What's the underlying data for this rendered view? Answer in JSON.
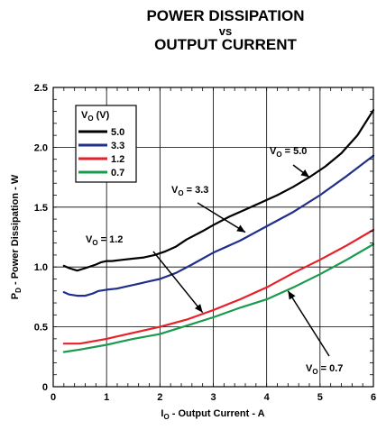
{
  "chart_data": {
    "type": "line",
    "title_lines": [
      "POWER DISSIPATION",
      "vs",
      "OUTPUT CURRENT"
    ],
    "xlabel": {
      "main": "I",
      "sub": "O",
      "rest": " - Output Current - A"
    },
    "ylabel": {
      "main": "P",
      "sub": "D",
      "rest": " - Power Dissipation - W"
    },
    "xlim": [
      0,
      6
    ],
    "ylim": [
      0,
      2.5
    ],
    "x_ticks": [
      0,
      1,
      2,
      3,
      4,
      5,
      6
    ],
    "x_tick_labels": [
      "0",
      "1",
      "2",
      "3",
      "4",
      "5",
      "6"
    ],
    "y_ticks": [
      0,
      0.5,
      1.0,
      1.5,
      2.0,
      2.5
    ],
    "y_tick_labels": [
      "0",
      "0.5",
      "1.0",
      "1.5",
      "2.0",
      "2.5"
    ],
    "grid": true,
    "legend": {
      "placement": "top-left",
      "title": {
        "main": "V",
        "sub": "O",
        "rest": " (V)"
      },
      "entries": [
        "5.0",
        "3.3",
        "1.2",
        "0.7"
      ]
    },
    "series": [
      {
        "name": "5.0",
        "color": "#000000",
        "x": [
          0.2,
          0.3,
          0.45,
          0.6,
          0.8,
          0.9,
          1.0,
          1.1,
          1.3,
          1.5,
          1.7,
          1.9,
          2.1,
          2.3,
          2.5,
          2.8,
          3.0,
          3.3,
          3.6,
          3.9,
          4.2,
          4.5,
          4.8,
          5.1,
          5.4,
          5.7,
          6.0
        ],
        "y": [
          1.01,
          0.99,
          0.97,
          0.99,
          1.02,
          1.04,
          1.05,
          1.05,
          1.06,
          1.07,
          1.08,
          1.1,
          1.13,
          1.17,
          1.23,
          1.3,
          1.35,
          1.42,
          1.48,
          1.54,
          1.6,
          1.67,
          1.75,
          1.84,
          1.95,
          2.1,
          2.31
        ]
      },
      {
        "name": "3.3",
        "color": "#1f2f8a",
        "x": [
          0.2,
          0.3,
          0.45,
          0.6,
          0.75,
          0.85,
          1.0,
          1.2,
          1.4,
          1.6,
          1.8,
          2.0,
          2.3,
          2.6,
          3.0,
          3.5,
          4.0,
          4.5,
          5.0,
          5.5,
          6.0
        ],
        "y": [
          0.79,
          0.77,
          0.76,
          0.76,
          0.78,
          0.8,
          0.81,
          0.82,
          0.84,
          0.86,
          0.88,
          0.9,
          0.95,
          1.02,
          1.12,
          1.22,
          1.34,
          1.46,
          1.6,
          1.76,
          1.93
        ]
      },
      {
        "name": "1.2",
        "color": "#e8202a",
        "x": [
          0.2,
          0.5,
          1.0,
          1.5,
          2.0,
          2.5,
          3.0,
          3.5,
          4.0,
          4.5,
          5.0,
          5.5,
          6.0
        ],
        "y": [
          0.36,
          0.36,
          0.4,
          0.45,
          0.5,
          0.56,
          0.64,
          0.73,
          0.83,
          0.95,
          1.06,
          1.18,
          1.31
        ]
      },
      {
        "name": "0.7",
        "color": "#1a9a4c",
        "x": [
          0.2,
          0.5,
          1.0,
          1.5,
          2.0,
          2.5,
          3.0,
          3.5,
          4.0,
          4.5,
          5.0,
          5.5,
          6.0
        ],
        "y": [
          0.29,
          0.31,
          0.35,
          0.4,
          0.44,
          0.51,
          0.58,
          0.66,
          0.73,
          0.83,
          0.94,
          1.06,
          1.19
        ]
      }
    ],
    "annotations": [
      {
        "main": "V",
        "sub": "O",
        "rest": " = 5.0",
        "target": [
          4.8,
          1.75
        ]
      },
      {
        "main": "V",
        "sub": "O",
        "rest": " = 3.3",
        "target": [
          3.6,
          1.29
        ]
      },
      {
        "main": "V",
        "sub": "O",
        "rest": " = 1.2",
        "target": [
          2.8,
          0.62
        ]
      },
      {
        "main": "V",
        "sub": "O",
        "rest": " = 0.7",
        "target": [
          4.4,
          0.8
        ]
      }
    ]
  }
}
